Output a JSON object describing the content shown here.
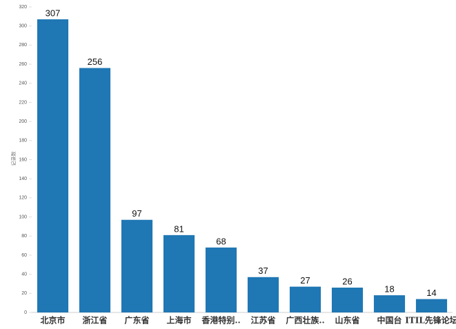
{
  "chart_data": {
    "type": "bar",
    "y_label": "记录数",
    "categories": [
      "北京市",
      "浙江省",
      "广东省",
      "上海市",
      "香港特别..",
      "江苏省",
      "广西壮族..",
      "山东省",
      "中国台",
      "ITIL先锋论坛"
    ],
    "values": [
      307,
      256,
      97,
      81,
      68,
      37,
      27,
      26,
      18,
      14
    ],
    "color": "#1f77b4",
    "ylim": [
      0,
      320
    ],
    "yticks": [
      0,
      20,
      40,
      60,
      80,
      100,
      120,
      140,
      160,
      180,
      200,
      220,
      240,
      260,
      280,
      300,
      320
    ],
    "grid": false
  }
}
